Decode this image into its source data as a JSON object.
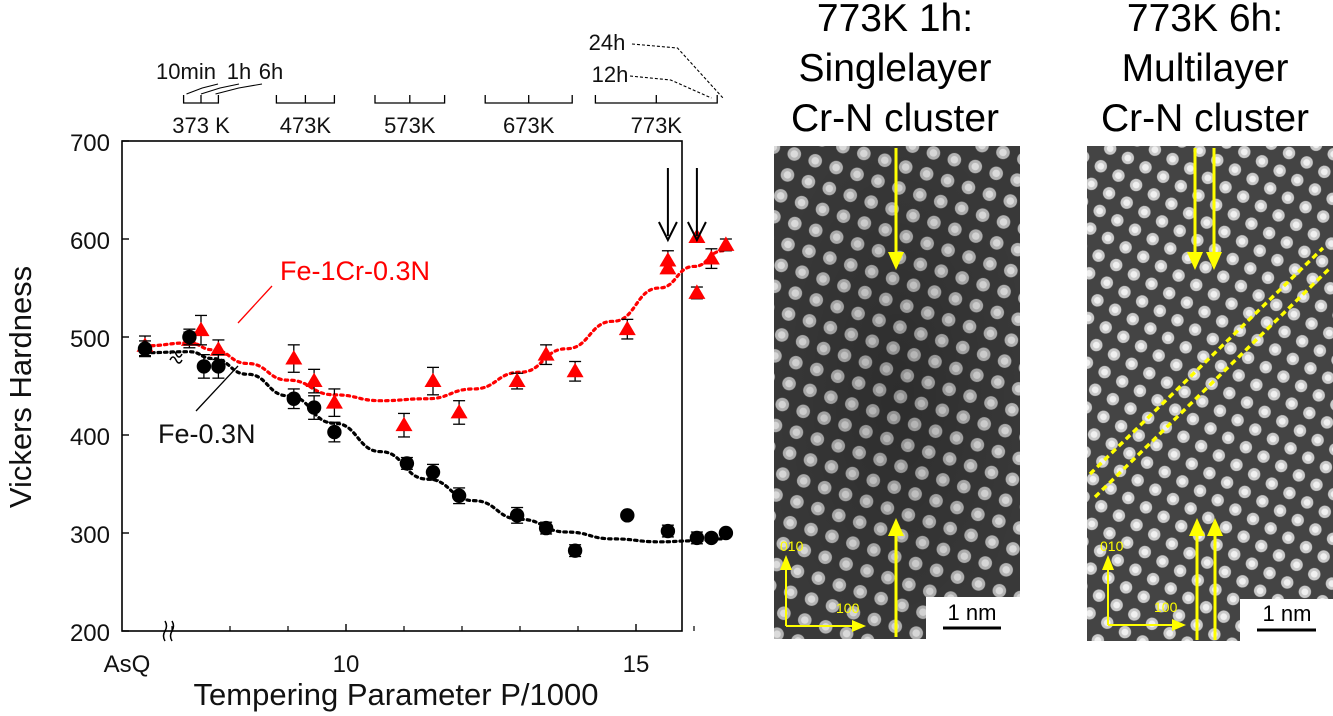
{
  "chart_data": {
    "type": "scatter",
    "xlabel": "Tempering Parameter P/1000",
    "ylabel": "Vickers Hardness",
    "ylim": [
      200,
      700
    ],
    "x_ticks": [
      {
        "value": 10,
        "label": "10"
      },
      {
        "value": 15,
        "label": "15"
      }
    ],
    "x_special_label": "AsQ",
    "y_ticks": [
      200,
      300,
      400,
      500,
      600,
      700
    ],
    "temperature_groups": [
      {
        "label": "373 K",
        "from": 7.2,
        "to": 7.8
      },
      {
        "label": "473K",
        "from": 8.8,
        "to": 9.8
      },
      {
        "label": "573K",
        "from": 10.5,
        "to": 11.7
      },
      {
        "label": "673K",
        "from": 12.4,
        "to": 13.9
      },
      {
        "label": "773K",
        "from": 14.3,
        "to": 16.4
      }
    ],
    "time_labels": [
      {
        "label": "10min",
        "x": 7.25
      },
      {
        "label": "1h",
        "x": 7.5
      },
      {
        "label": "6h",
        "x": 7.75
      },
      {
        "label": "12h",
        "x": 16.3
      },
      {
        "label": "24h",
        "x": 16.5
      }
    ],
    "series": [
      {
        "name": "Fe-1Cr-0.3N",
        "color": "#ff0000",
        "marker": "triangle",
        "points": [
          {
            "x": "AsQ",
            "y": 491,
            "err": 10
          },
          {
            "x": 7.3,
            "y": 497,
            "err": 8
          },
          {
            "x": 7.5,
            "y": 507,
            "err": 15
          },
          {
            "x": 7.8,
            "y": 487,
            "err": 10
          },
          {
            "x": 9.1,
            "y": 478,
            "err": 14
          },
          {
            "x": 9.45,
            "y": 455,
            "err": 12
          },
          {
            "x": 9.8,
            "y": 433,
            "err": 14
          },
          {
            "x": 11.0,
            "y": 410,
            "err": 12
          },
          {
            "x": 11.5,
            "y": 455,
            "err": 14
          },
          {
            "x": 11.95,
            "y": 423,
            "err": 12
          },
          {
            "x": 12.95,
            "y": 455,
            "err": 8
          },
          {
            "x": 13.45,
            "y": 482,
            "err": 10
          },
          {
            "x": 13.95,
            "y": 465,
            "err": 10
          },
          {
            "x": 14.85,
            "y": 508,
            "err": 10
          },
          {
            "x": 15.55,
            "y": 578,
            "err": 10
          },
          {
            "x": 15.55,
            "y": 570,
            "err": 0
          },
          {
            "x": 16.05,
            "y": 602,
            "err": 0
          },
          {
            "x": 16.05,
            "y": 545,
            "err": 6
          },
          {
            "x": 16.3,
            "y": 580,
            "err": 10
          },
          {
            "x": 16.55,
            "y": 594,
            "err": 6
          }
        ]
      },
      {
        "name": "Fe-0.3N",
        "color": "#000000",
        "marker": "circle",
        "points": [
          {
            "x": "AsQ",
            "y": 488,
            "err": 8
          },
          {
            "x": 7.3,
            "y": 500,
            "err": 8
          },
          {
            "x": 7.55,
            "y": 470,
            "err": 12
          },
          {
            "x": 7.8,
            "y": 470,
            "err": 12
          },
          {
            "x": 9.1,
            "y": 437,
            "err": 10
          },
          {
            "x": 9.45,
            "y": 428,
            "err": 12
          },
          {
            "x": 9.8,
            "y": 403,
            "err": 10
          },
          {
            "x": 11.05,
            "y": 371,
            "err": 6
          },
          {
            "x": 11.5,
            "y": 362,
            "err": 8
          },
          {
            "x": 11.95,
            "y": 338,
            "err": 8
          },
          {
            "x": 12.95,
            "y": 318,
            "err": 8
          },
          {
            "x": 13.45,
            "y": 305,
            "err": 6
          },
          {
            "x": 13.95,
            "y": 282,
            "err": 6
          },
          {
            "x": 14.85,
            "y": 318,
            "err": 0
          },
          {
            "x": 15.55,
            "y": 302,
            "err": 6
          },
          {
            "x": 16.05,
            "y": 295,
            "err": 6
          },
          {
            "x": 16.3,
            "y": 295,
            "err": 0
          },
          {
            "x": 16.55,
            "y": 300,
            "err": 0
          }
        ]
      }
    ],
    "fit_curves": [
      {
        "series": "Fe-1Cr-0.3N",
        "style": "dotted",
        "color": "#ff0000",
        "x": [
          "AsQ",
          7.3,
          7.7,
          8.3,
          9.0,
          9.8,
          10.6,
          11.4,
          12.2,
          13.0,
          13.8,
          14.6,
          15.4,
          16.0,
          16.5
        ],
        "y": [
          491,
          494,
          487,
          473,
          456,
          441,
          435,
          437,
          447,
          464,
          488,
          516,
          550,
          572,
          588
        ]
      },
      {
        "series": "Fe-0.3N",
        "style": "dotted",
        "color": "#000000",
        "x": [
          "AsQ",
          7.3,
          7.7,
          8.3,
          9.0,
          9.8,
          10.6,
          11.4,
          12.2,
          13.0,
          13.8,
          14.6,
          15.4,
          16.0,
          16.5
        ],
        "y": [
          484,
          485,
          478,
          462,
          440,
          412,
          383,
          355,
          333,
          314,
          301,
          294,
          291,
          292,
          294
        ]
      }
    ],
    "arrows_at": [
      15.55,
      16.05
    ]
  },
  "panels": [
    {
      "title_lines": [
        "773K 1h:",
        "Singlelayer",
        "Cr-N cluster"
      ],
      "axis_up": "010",
      "axis_right": "100",
      "scale_bar": "1 nm"
    },
    {
      "title_lines": [
        "773K 6h:",
        "Multilayer",
        "Cr-N cluster"
      ],
      "axis_up": "010",
      "axis_right": "100",
      "scale_bar": "1 nm"
    }
  ],
  "colors": {
    "hardness_fecrn": "#ff0000",
    "hardness_fen": "#000000",
    "annotation": "#ffff00"
  }
}
